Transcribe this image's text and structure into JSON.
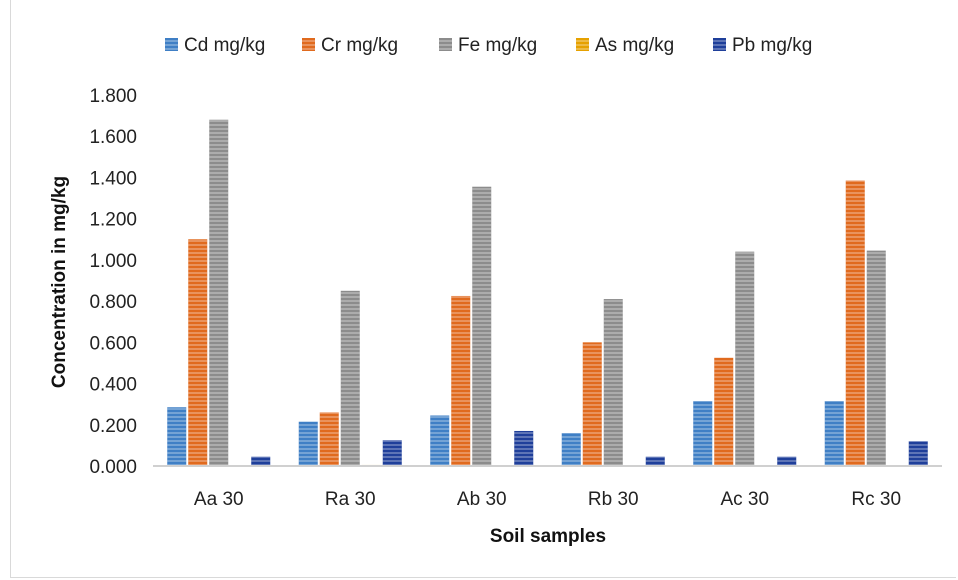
{
  "chart_data": {
    "type": "bar",
    "title": "",
    "xlabel": "Soil samples",
    "ylabel": "Concentration in mg/kg",
    "ylim": [
      0,
      1.8
    ],
    "y_ticks": [
      "0.000",
      "0.200",
      "0.400",
      "0.600",
      "0.800",
      "1.000",
      "1.200",
      "1.400",
      "1.600",
      "1.800"
    ],
    "categories": [
      "Aa 30",
      "Ra 30",
      "Ab 30",
      "Rb 30",
      "Ac 30",
      "Rc 30"
    ],
    "legend_position": "top",
    "grid": false,
    "series": [
      {
        "name": "Cd mg/kg",
        "color": "#3f7fc5",
        "values": [
          0.285,
          0.215,
          0.245,
          0.16,
          0.315,
          0.315
        ]
      },
      {
        "name": "Cr mg/kg",
        "color": "#e06a1e",
        "values": [
          1.1,
          0.26,
          0.825,
          0.6,
          0.525,
          1.385
        ]
      },
      {
        "name": "Fe mg/kg",
        "color": "#8c8c8c",
        "values": [
          1.68,
          0.85,
          1.355,
          0.81,
          1.04,
          1.045
        ]
      },
      {
        "name": "As mg/kg",
        "color": "#e6a100",
        "values": [
          0,
          0.005,
          0,
          0,
          0,
          0
        ]
      },
      {
        "name": "Pb mg/kg",
        "color": "#1f3f9a",
        "values": [
          0.045,
          0.125,
          0.17,
          0.045,
          0.045,
          0.12
        ]
      }
    ]
  }
}
